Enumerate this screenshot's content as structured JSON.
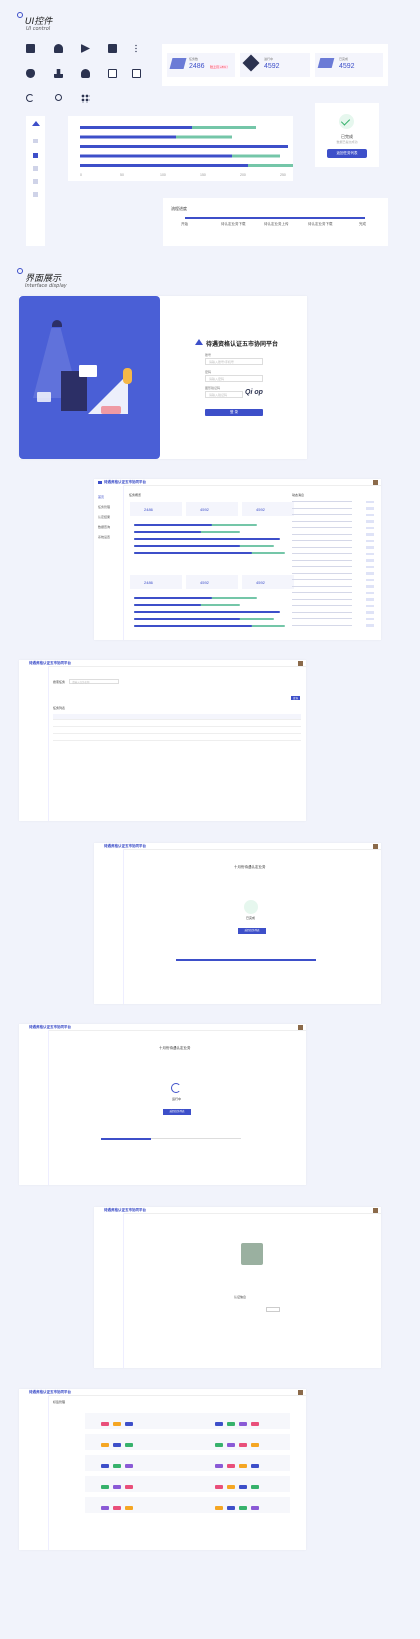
{
  "section1": {
    "title_cn": "UI控件",
    "title_en": "UI control"
  },
  "section2": {
    "title_cn": "界面展示",
    "title_en": "Interface display"
  },
  "stats": [
    {
      "label": "任务数",
      "value": "2486",
      "badge": "较上月 +8% ↑"
    },
    {
      "label": "进行中",
      "value": "4592"
    },
    {
      "label": "已完成",
      "value": "4592"
    }
  ],
  "bar_chart": {
    "series": [
      {
        "values": [
          220,
          190,
          230,
          250,
          270
        ]
      },
      {
        "values": [
          140,
          120,
          260,
          190,
          210
        ]
      }
    ],
    "axis": [
      "0",
      "50",
      "100",
      "150",
      "200",
      "250"
    ]
  },
  "done_card": {
    "title": "已完成",
    "sub": "数据已提交成功",
    "button": "返回任务列表"
  },
  "progress_card": {
    "title": "流程进度",
    "steps": [
      "开始",
      "待认定业务下载",
      "待认定业务上传",
      "待认定业务下载",
      "完成"
    ]
  },
  "login": {
    "platform": "待遇资格认证五市协同平台",
    "account_label": "账号",
    "account_placeholder": "请输入账号/手机号",
    "password_label": "密码",
    "password_placeholder": "请输入密码",
    "captcha_label": "图形验证码",
    "captcha_placeholder": "请输入验证码",
    "captcha_text": "Qi op",
    "button": "登 录"
  },
  "screens": {
    "app_title": "待遇资格认证五市协同平台",
    "nav": [
      "首页",
      "任务管理",
      "认定结果",
      "数据查询",
      "系统设置"
    ],
    "overview_title": "任务概览",
    "dynamic_title": "动态消息",
    "list_title": "任务列表",
    "search_label": "搜索任务",
    "search_placeholder": "请输入任务名称",
    "query_button": "查询",
    "detail_title": "十月份待遇认定业务",
    "running_title": "运行中",
    "running_button": "返回任务列表",
    "person_title": "认证信息",
    "tag_section_title": "标签管理"
  }
}
